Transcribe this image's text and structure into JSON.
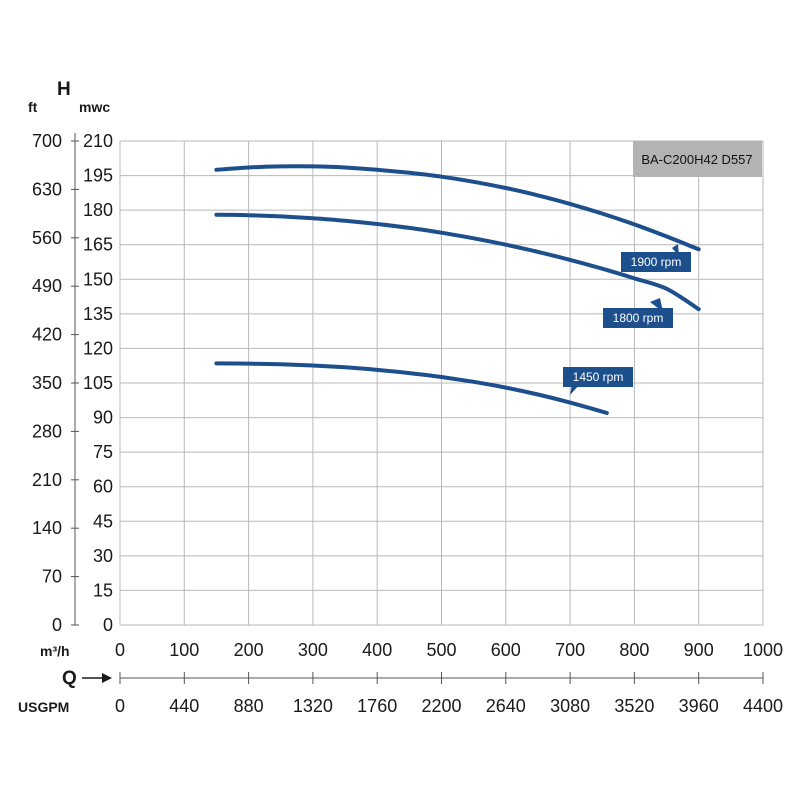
{
  "chart_data": {
    "type": "line",
    "model_label": "BA-C200H42 D557",
    "y_axis_title": "H",
    "y_left_unit": "ft",
    "y_right_unit": "mwc",
    "x_axis_title": "Q",
    "x_unit_primary": "m³/h",
    "x_unit_secondary": "USGPM",
    "xlim": [
      0,
      1000
    ],
    "ylim": [
      0,
      210
    ],
    "x_ticks": [
      "0",
      "100",
      "200",
      "300",
      "400",
      "500",
      "600",
      "700",
      "800",
      "900",
      "1000"
    ],
    "x_ticks_secondary": [
      "0",
      "440",
      "880",
      "1320",
      "1760",
      "2200",
      "2640",
      "3080",
      "3520",
      "3960",
      "4400"
    ],
    "y_ticks_mwc": [
      "0",
      "15",
      "30",
      "45",
      "60",
      "75",
      "90",
      "105",
      "120",
      "135",
      "150",
      "165",
      "180",
      "195",
      "210"
    ],
    "y_ticks_ft": [
      "0",
      "70",
      "140",
      "210",
      "280",
      "350",
      "420",
      "490",
      "560",
      "630",
      "700"
    ],
    "grid": true,
    "series": [
      {
        "name": "1900 rpm",
        "color": "#1d4f8c",
        "x": [
          150,
          200,
          250,
          300,
          350,
          400,
          450,
          500,
          550,
          600,
          650,
          700,
          750,
          800,
          850,
          900
        ],
        "y": [
          197.5,
          198.5,
          199.0,
          199.0,
          198.5,
          197.5,
          196.2,
          194.5,
          192.3,
          189.6,
          186.4,
          182.7,
          178.5,
          173.8,
          168.6,
          163.0
        ]
      },
      {
        "name": "1800 rpm",
        "color": "#1d4f8c",
        "x": [
          150,
          200,
          250,
          300,
          350,
          400,
          450,
          500,
          550,
          600,
          650,
          700,
          750,
          800,
          850,
          900
        ],
        "y": [
          178.0,
          177.8,
          177.3,
          176.5,
          175.4,
          174.0,
          172.3,
          170.2,
          167.8,
          165.0,
          161.9,
          158.4,
          154.6,
          150.4,
          145.9,
          137.0
        ]
      },
      {
        "name": "1450 rpm",
        "color": "#1d4f8c",
        "x": [
          150,
          200,
          250,
          300,
          350,
          400,
          450,
          500,
          550,
          600,
          650,
          700,
          757
        ],
        "y": [
          113.5,
          113.4,
          113.1,
          112.6,
          111.8,
          110.7,
          109.3,
          107.6,
          105.5,
          103.0,
          100.0,
          96.5,
          92.0
        ]
      }
    ]
  }
}
